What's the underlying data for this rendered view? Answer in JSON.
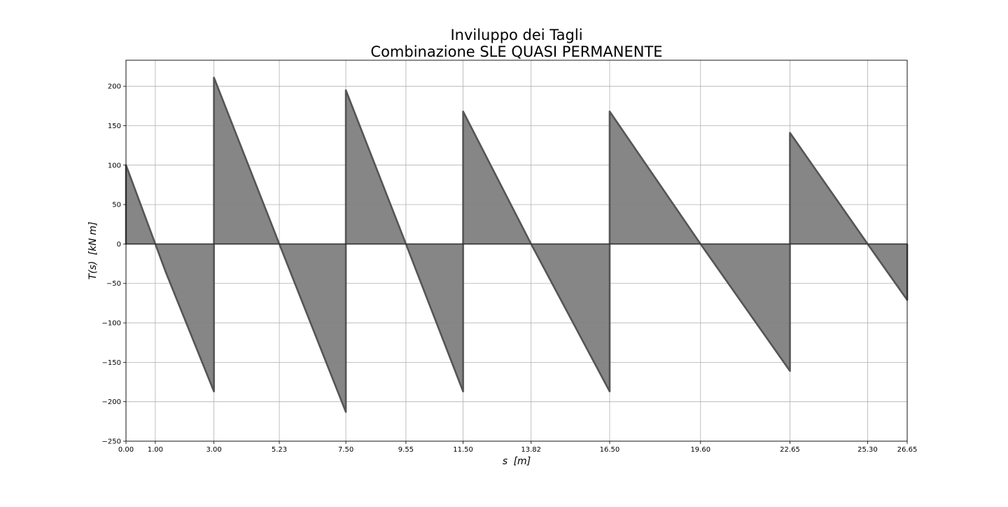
{
  "chart_data": {
    "type": "area",
    "title": [
      "Inviluppo dei Tagli",
      "Combinazione SLE QUASI PERMANENTE"
    ],
    "xlabel_parts": [
      "s",
      "[m]"
    ],
    "ylabel_parts": [
      "T(s)",
      "[kN m]"
    ],
    "xlim": [
      0,
      26.65
    ],
    "ylim": [
      -250,
      233
    ],
    "x_ticks": [
      0,
      1,
      3,
      5.23,
      7.5,
      9.55,
      11.5,
      13.82,
      16.5,
      19.6,
      22.65,
      25.3,
      26.65
    ],
    "x_tick_labels": [
      "0.00",
      "1.00",
      "3.00",
      "5.23",
      "7.50",
      "9.55",
      "11.50",
      "13.82",
      "16.50",
      "19.60",
      "22.65",
      "25.30",
      "26.65"
    ],
    "y_ticks": [
      -250,
      -200,
      -150,
      -100,
      -50,
      0,
      50,
      100,
      150,
      200
    ],
    "y_tick_labels": [
      "−250",
      "−200",
      "−150",
      "−100",
      "−50",
      "0",
      "50",
      "100",
      "150",
      "200"
    ],
    "grid": true,
    "fill_color": "#808080",
    "line_color": "#555555",
    "series": [
      {
        "x": [
          0,
          0,
          1.0,
          1.35,
          3.0,
          3.0,
          5.23,
          7.5,
          7.5,
          9.55,
          11.5,
          11.5,
          13.82,
          16.5,
          16.5,
          19.6,
          22.65,
          22.65,
          25.3,
          26.65,
          26.65
        ],
        "y": [
          0,
          100,
          0,
          -35,
          -187,
          211,
          0,
          -213,
          195,
          0,
          -187,
          168,
          0,
          -187,
          168,
          0,
          -161,
          141,
          0,
          -71,
          0
        ]
      }
    ]
  }
}
